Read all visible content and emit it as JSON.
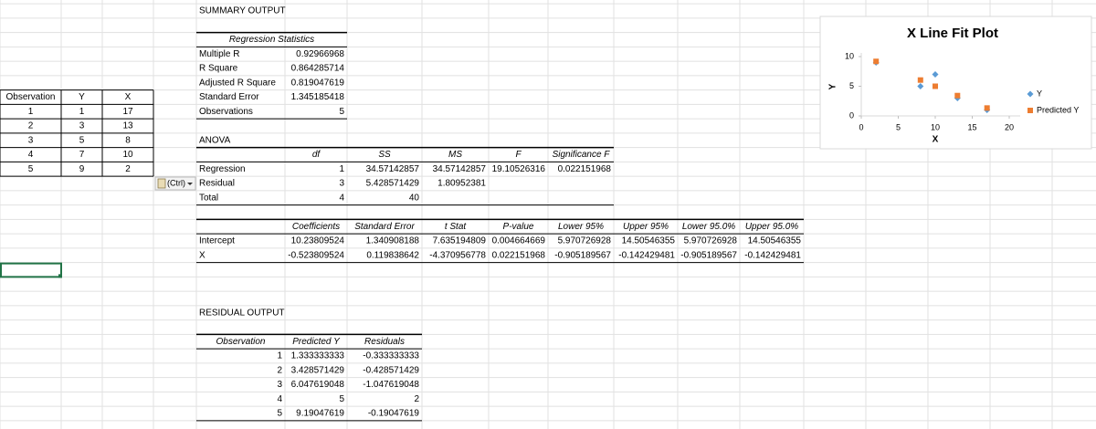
{
  "left_table": {
    "header": [
      "Observation",
      "Y",
      "X"
    ],
    "rows": [
      [
        1,
        1,
        17
      ],
      [
        2,
        3,
        13
      ],
      [
        3,
        5,
        8
      ],
      [
        4,
        7,
        10
      ],
      [
        5,
        9,
        2
      ]
    ]
  },
  "summary_title": "SUMMARY OUTPUT",
  "regression_statistics": {
    "title": "Regression Statistics",
    "rows": [
      [
        "Multiple R",
        0.92966968
      ],
      [
        "R Square",
        0.864285714
      ],
      [
        "Adjusted R Square",
        0.819047619
      ],
      [
        "Standard Error",
        1.345185418
      ],
      [
        "Observations",
        5
      ]
    ]
  },
  "anova": {
    "title": "ANOVA",
    "header": [
      "df",
      "SS",
      "MS",
      "F",
      "Significance F"
    ],
    "rows": [
      [
        "Regression",
        1,
        34.57142857,
        34.57142857,
        19.10526316,
        0.022151968
      ],
      [
        "Residual",
        3,
        5.428571429,
        1.80952381
      ],
      [
        "Total",
        4,
        40
      ]
    ]
  },
  "coefficients": {
    "header": [
      "Coefficients",
      "Standard Error",
      "t Stat",
      "P-value",
      "Lower 95%",
      "Upper 95%",
      "Lower 95.0%",
      "Upper 95.0%"
    ],
    "rows": [
      [
        "Intercept",
        10.23809524,
        1.340908188,
        7.635194809,
        0.004664669,
        5.970726928,
        14.50546355,
        5.970726928,
        14.50546355
      ],
      [
        "X",
        -0.523809524,
        0.119838642,
        -4.370956778,
        0.022151968,
        -0.905189567,
        -0.142429481,
        -0.905189567,
        -0.142429481
      ]
    ]
  },
  "residual_output": {
    "title": "RESIDUAL OUTPUT",
    "header": [
      "Observation",
      "Predicted Y",
      "Residuals"
    ],
    "rows": [
      [
        1,
        1.333333333,
        -0.333333333
      ],
      [
        2,
        3.428571429,
        -0.428571429
      ],
      [
        3,
        6.047619048,
        -1.047619048
      ],
      [
        4,
        5,
        2
      ],
      [
        5,
        9.19047619,
        -0.19047619
      ]
    ]
  },
  "paste_button": "(Ctrl)",
  "chart": {
    "type": "scatter",
    "title": "X Line Fit Plot",
    "x_label": "X",
    "y_label": "Y",
    "x": [
      17,
      13,
      8,
      10,
      2
    ],
    "series": [
      {
        "name": "Y",
        "color": "#5b9bd5",
        "marker": "diamond",
        "values": [
          1,
          3,
          5,
          7,
          9
        ]
      },
      {
        "name": "Predicted Y",
        "color": "#ed7d31",
        "marker": "square",
        "values": [
          1.333333333,
          3.428571429,
          6.047619048,
          5,
          9.19047619
        ]
      }
    ],
    "xlim": [
      0,
      20
    ],
    "xticks": [
      0,
      5,
      10,
      15,
      20
    ],
    "ylim": [
      0,
      10
    ],
    "yticks": [
      0,
      5,
      10
    ]
  }
}
